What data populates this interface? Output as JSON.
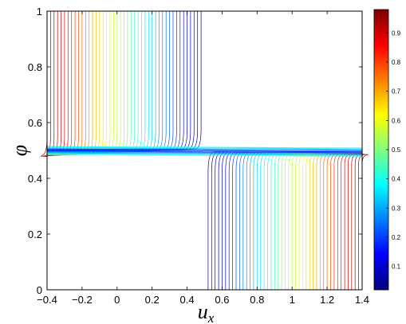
{
  "chart_data": {
    "type": "contour",
    "xlabel": "u",
    "xlabel_subscript": "x",
    "ylabel": "φ",
    "xlim": [
      -0.4,
      1.4
    ],
    "ylim": [
      0,
      1
    ],
    "x_ticks": [
      "−0.4",
      "−0.2",
      "0",
      "0.2",
      "0.4",
      "0.6",
      "0.8",
      "1",
      "1.2",
      "1.4"
    ],
    "y_ticks": [
      "0",
      "0.2",
      "0.4",
      "0.6",
      "0.8",
      "1"
    ],
    "colorbar": {
      "colormap": "jet",
      "range": [
        0.02,
        0.98
      ],
      "ticks": [
        "0.1",
        "0.2",
        "0.3",
        "0.4",
        "0.5",
        "0.6",
        "0.7",
        "0.8",
        "0.9"
      ]
    },
    "interface_phi": 0.5,
    "contour_levels": {
      "upper_region_x": [
        -0.4,
        -0.38,
        -0.36,
        -0.34,
        -0.32,
        -0.3,
        -0.28,
        -0.26,
        -0.24,
        -0.22,
        -0.2,
        -0.18,
        -0.16,
        -0.14,
        -0.12,
        -0.1,
        -0.08,
        -0.06,
        -0.04,
        -0.02,
        0.0,
        0.02,
        0.04,
        0.06,
        0.08,
        0.1,
        0.12,
        0.14,
        0.16,
        0.18,
        0.2,
        0.22,
        0.24,
        0.26,
        0.28,
        0.3,
        0.32,
        0.34,
        0.36,
        0.38,
        0.4,
        0.42,
        0.44,
        0.46,
        0.48
      ],
      "lower_region_x": [
        0.52,
        0.54,
        0.56,
        0.58,
        0.6,
        0.62,
        0.64,
        0.66,
        0.68,
        0.7,
        0.72,
        0.74,
        0.76,
        0.78,
        0.8,
        0.82,
        0.84,
        0.86,
        0.88,
        0.9,
        0.92,
        0.94,
        0.96,
        0.98,
        1.0,
        1.02,
        1.04,
        1.06,
        1.08,
        1.1,
        1.12,
        1.14,
        1.16,
        1.18,
        1.2,
        1.22,
        1.24,
        1.26,
        1.28,
        1.3,
        1.32,
        1.34,
        1.36,
        1.38,
        1.4
      ]
    }
  }
}
